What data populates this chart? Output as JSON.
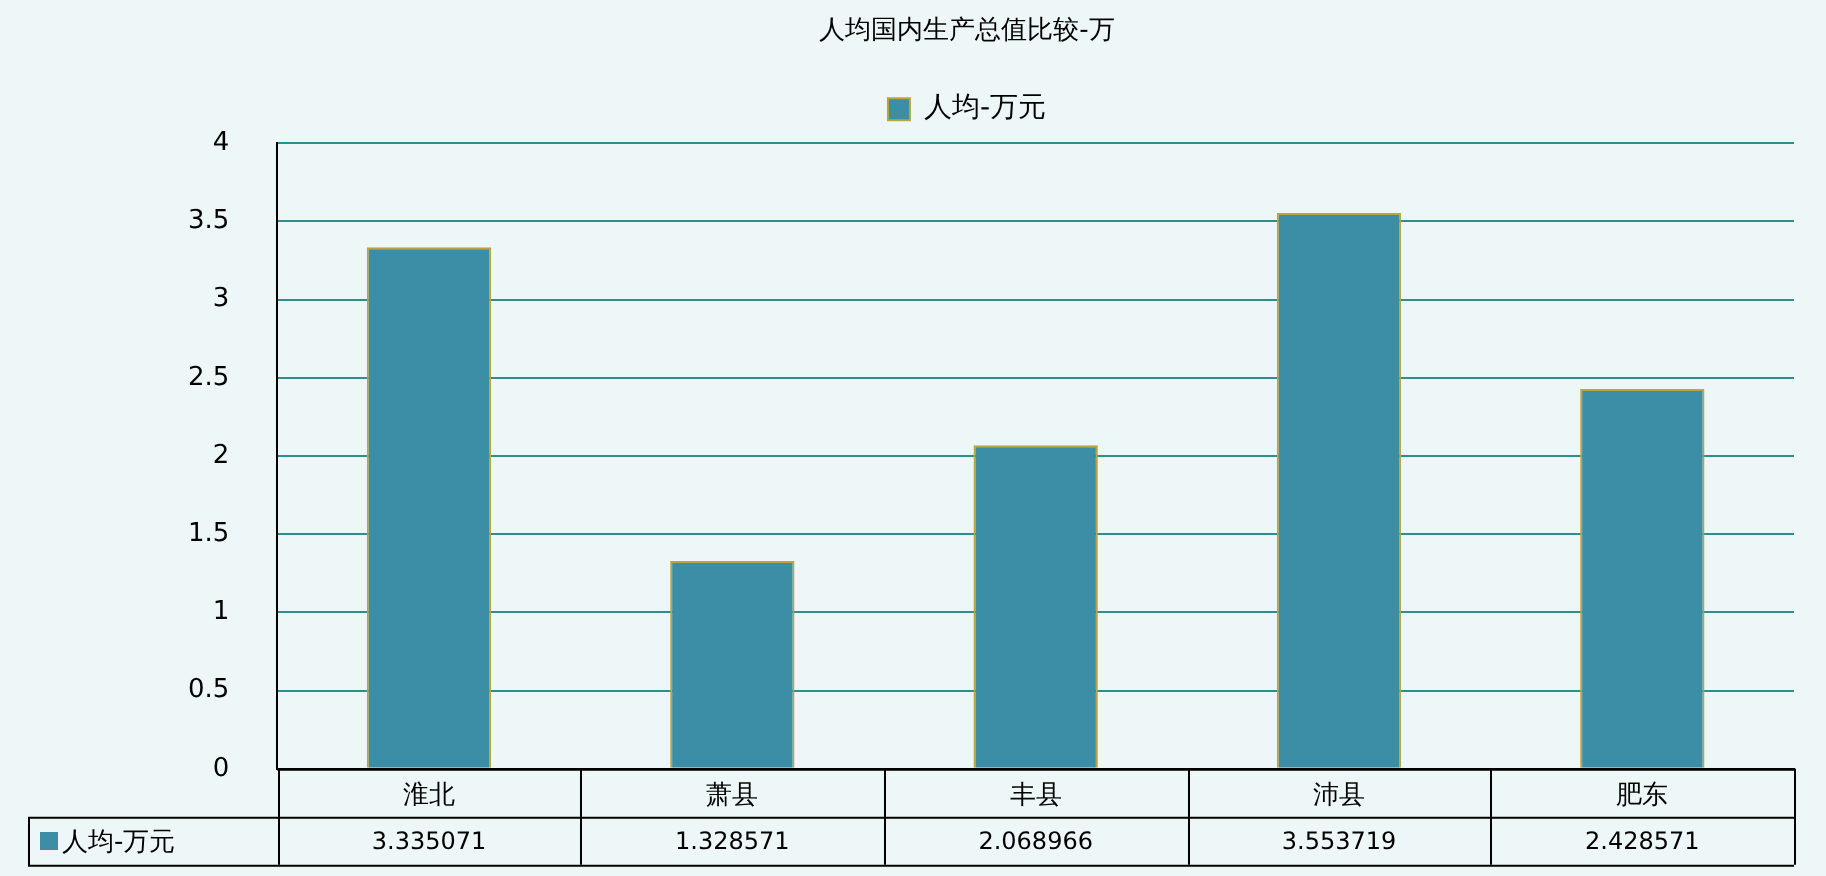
{
  "chart_data": {
    "type": "bar",
    "title": "人均国内生产总值比较-万",
    "categories": [
      "淮北",
      "萧县",
      "丰县",
      "沛县",
      "肥东"
    ],
    "series": [
      {
        "name": "人均-万元",
        "color": "#3b8ea5",
        "values": [
          3.335071,
          1.328571,
          2.068966,
          3.553719,
          2.428571
        ]
      }
    ],
    "ylim": [
      0,
      4
    ],
    "yticks": [
      0,
      0.5,
      1,
      1.5,
      2,
      2.5,
      3,
      3.5,
      4
    ],
    "grid": "y",
    "legend": "top",
    "data_labels": true
  }
}
